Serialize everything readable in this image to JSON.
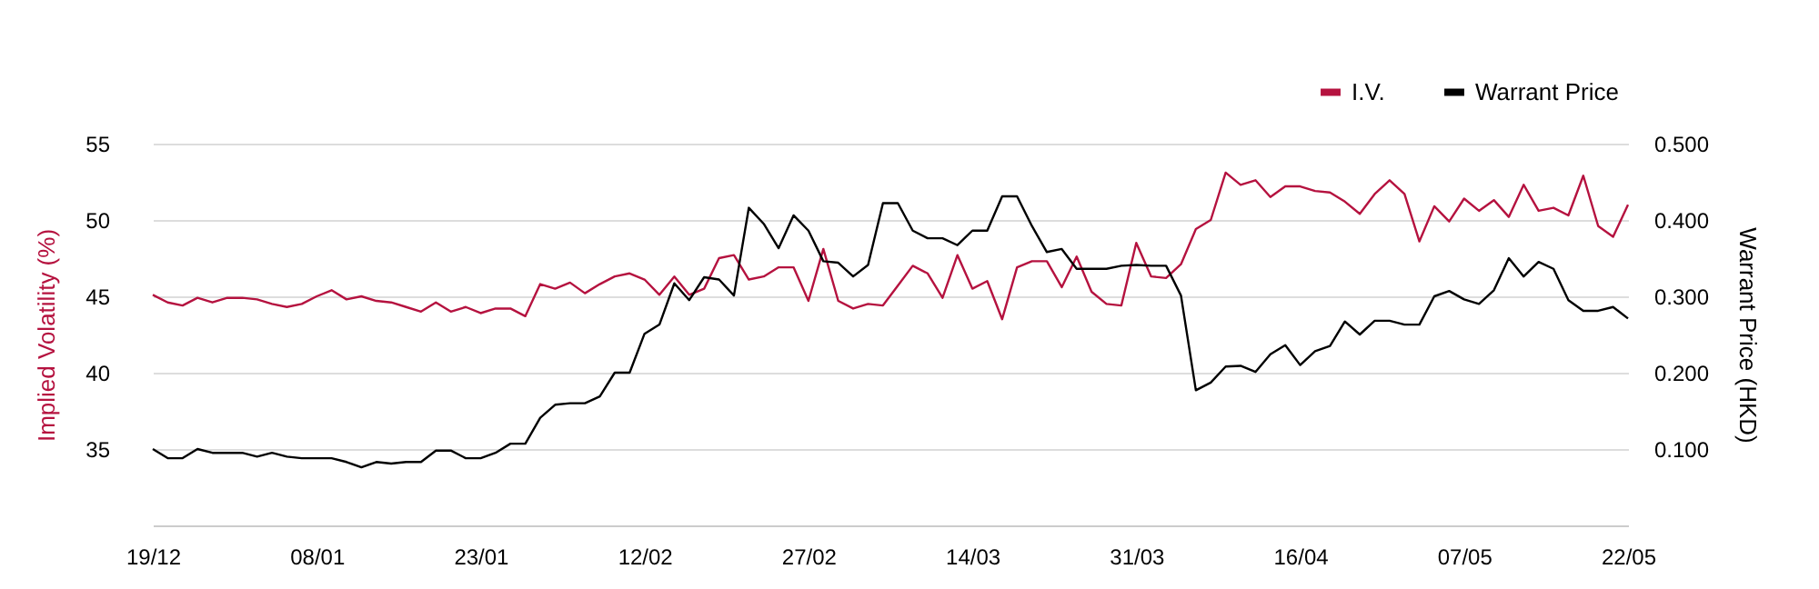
{
  "chart_data": {
    "type": "line",
    "categories": [
      "19/12",
      null,
      null,
      null,
      null,
      null,
      null,
      null,
      null,
      null,
      null,
      "08/01",
      null,
      null,
      null,
      null,
      null,
      null,
      null,
      null,
      null,
      null,
      "23/01",
      null,
      null,
      null,
      null,
      null,
      null,
      null,
      null,
      null,
      null,
      "12/02",
      null,
      null,
      null,
      null,
      null,
      null,
      null,
      null,
      null,
      null,
      "27/02",
      null,
      null,
      null,
      null,
      null,
      null,
      null,
      null,
      null,
      null,
      "14/03",
      null,
      null,
      null,
      null,
      null,
      null,
      null,
      null,
      null,
      null,
      "31/03",
      null,
      null,
      null,
      null,
      null,
      null,
      null,
      null,
      null,
      null,
      "16/04",
      null,
      null,
      null,
      null,
      null,
      null,
      null,
      null,
      null,
      null,
      "07/05",
      null,
      null,
      null,
      null,
      null,
      null,
      null,
      null,
      null,
      null,
      "22/05"
    ],
    "series": [
      {
        "name": "I.V.",
        "color": "#b5123f",
        "values": [
          45.1,
          44.6,
          44.4,
          44.9,
          44.6,
          44.9,
          44.9,
          44.8,
          44.5,
          44.3,
          44.5,
          45.0,
          45.4,
          44.8,
          45.0,
          44.7,
          44.6,
          44.3,
          44.0,
          44.6,
          44.0,
          44.3,
          43.9,
          44.2,
          44.2,
          43.7,
          45.8,
          45.5,
          45.9,
          45.2,
          45.8,
          46.3,
          46.5,
          46.1,
          45.1,
          46.3,
          45.1,
          45.5,
          47.5,
          47.7,
          46.1,
          46.3,
          46.9,
          46.9,
          44.7,
          48.1,
          44.7,
          44.2,
          44.5,
          44.4,
          45.7,
          47.0,
          46.5,
          44.9,
          47.7,
          45.5,
          46.0,
          43.5,
          46.9,
          47.3,
          47.3,
          45.6,
          47.6,
          45.3,
          44.5,
          44.4,
          48.5,
          46.3,
          46.2,
          47.1,
          49.4,
          50.0,
          53.1,
          52.3,
          52.6,
          51.5,
          52.2,
          52.2,
          51.9,
          51.8,
          51.2,
          50.4,
          51.7,
          52.6,
          51.7,
          48.6,
          50.9,
          49.9,
          51.4,
          50.6,
          51.3,
          50.2,
          52.3,
          50.6,
          50.8,
          50.3,
          52.9,
          49.6,
          48.9,
          51.0
        ]
      },
      {
        "name": "Warrant Price",
        "color": "#000000",
        "axis": "y2",
        "values": [
          0.1,
          0.088,
          0.088,
          0.1,
          0.095,
          0.095,
          0.095,
          0.09,
          0.095,
          0.09,
          0.088,
          0.088,
          0.088,
          0.083,
          0.076,
          0.083,
          0.081,
          0.083,
          0.083,
          0.098,
          0.098,
          0.088,
          0.088,
          0.095,
          0.107,
          0.107,
          0.141,
          0.158,
          0.16,
          0.16,
          0.169,
          0.2,
          0.2,
          0.251,
          0.263,
          0.317,
          0.295,
          0.325,
          0.322,
          0.301,
          0.416,
          0.395,
          0.363,
          0.406,
          0.386,
          0.346,
          0.344,
          0.326,
          0.341,
          0.422,
          0.422,
          0.386,
          0.376,
          0.376,
          0.367,
          0.386,
          0.386,
          0.431,
          0.431,
          0.392,
          0.358,
          0.362,
          0.336,
          0.336,
          0.336,
          0.34,
          0.341,
          0.34,
          0.34,
          0.301,
          0.177,
          0.187,
          0.208,
          0.209,
          0.201,
          0.224,
          0.236,
          0.21,
          0.228,
          0.235,
          0.267,
          0.25,
          0.268,
          0.268,
          0.263,
          0.263,
          0.3,
          0.307,
          0.296,
          0.29,
          0.308,
          0.35,
          0.326,
          0.345,
          0.336,
          0.295,
          0.281,
          0.281,
          0.286,
          0.271
        ]
      }
    ],
    "ylabel": "Implied Volatility (%)",
    "y2label": "Warrant Price (HKD)",
    "ylim": [
      30,
      55
    ],
    "yticks": [
      35,
      40,
      45,
      50,
      55
    ],
    "y2lim": [
      0,
      0.5
    ],
    "y2ticks": [
      {
        "value": 0.1,
        "label": "0.100"
      },
      {
        "value": 0.2,
        "label": "0.200"
      },
      {
        "value": 0.3,
        "label": "0.300"
      },
      {
        "value": 0.4,
        "label": "0.400"
      },
      {
        "value": 0.5,
        "label": "0.500"
      }
    ],
    "grid": "y",
    "legend": "top right",
    "marker": "none",
    "line_style": "solid"
  }
}
